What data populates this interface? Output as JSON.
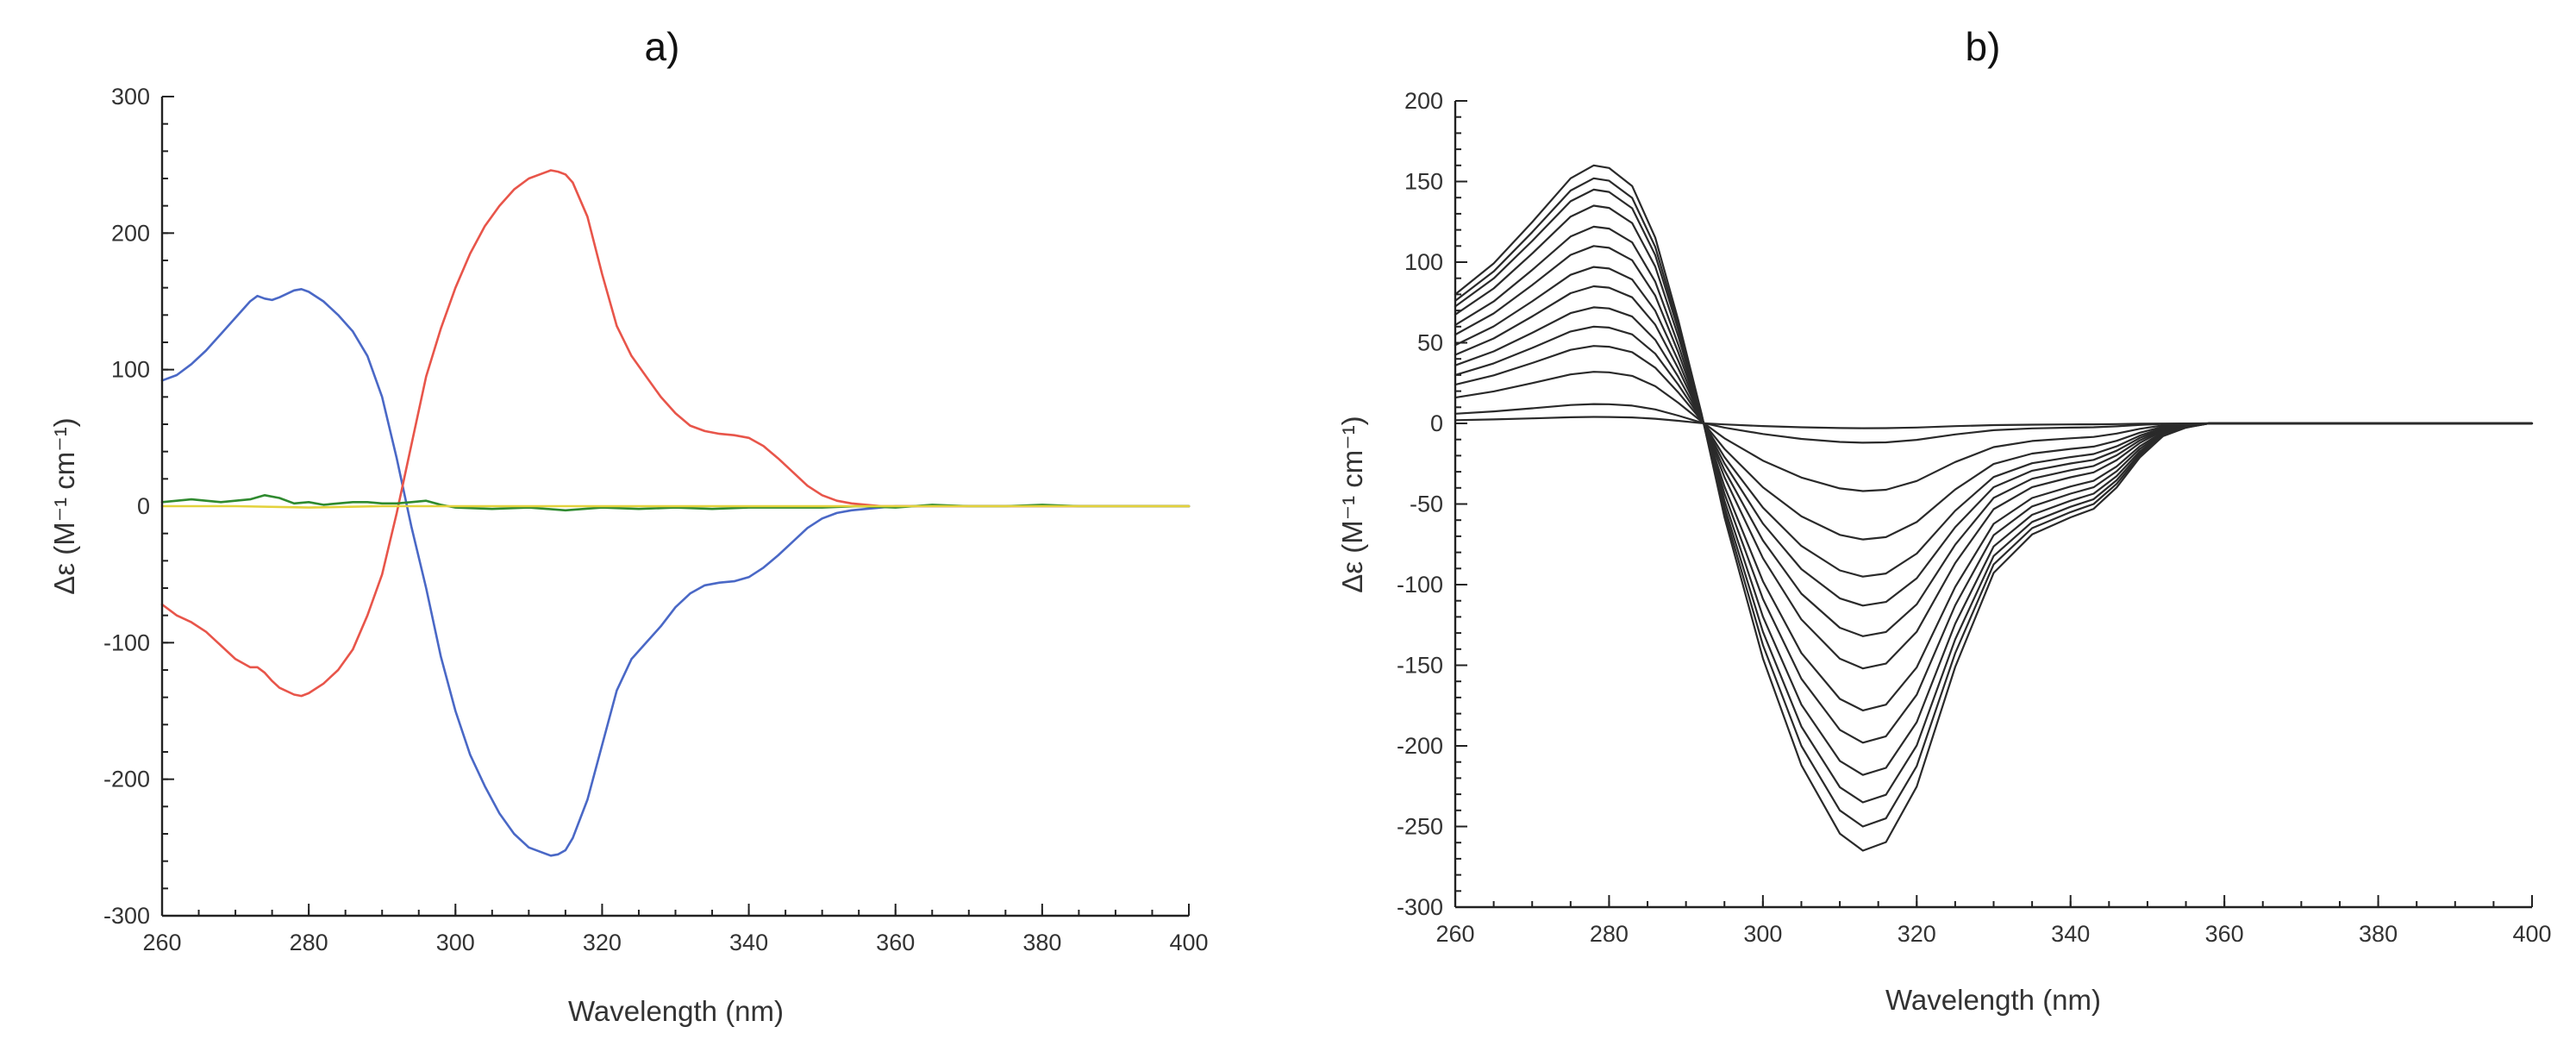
{
  "chart_data": [
    {
      "panel_label": "a)",
      "type": "line",
      "xlabel": "Wavelength (nm)",
      "ylabel": "Δε (M⁻¹ cm⁻¹)",
      "xlim": [
        260,
        400
      ],
      "ylim": [
        -300,
        300
      ],
      "xticks": [
        260,
        280,
        300,
        320,
        340,
        360,
        380,
        400
      ],
      "yticks": [
        -300,
        -200,
        -100,
        0,
        100,
        200,
        300
      ],
      "grid": false,
      "series": [
        {
          "name": "blue trace",
          "color": "#4a68c6",
          "x": [
            260,
            262,
            264,
            266,
            268,
            270,
            272,
            273,
            274,
            275,
            276,
            278,
            279,
            280,
            282,
            284,
            286,
            288,
            290,
            292,
            294,
            296,
            298,
            300,
            302,
            304,
            306,
            308,
            310,
            312,
            313,
            314,
            315,
            316,
            318,
            320,
            322,
            324,
            326,
            328,
            330,
            332,
            334,
            336,
            338,
            340,
            342,
            344,
            346,
            348,
            350,
            352,
            354,
            356,
            358,
            360,
            364,
            370,
            380,
            390,
            400
          ],
          "y": [
            92,
            96,
            104,
            114,
            126,
            138,
            150,
            154,
            152,
            151,
            153,
            158,
            159,
            157,
            150,
            140,
            128,
            110,
            80,
            35,
            -15,
            -60,
            -110,
            -150,
            -182,
            -205,
            -225,
            -240,
            -250,
            -254,
            -256,
            -255,
            -252,
            -243,
            -215,
            -175,
            -135,
            -112,
            -100,
            -88,
            -74,
            -64,
            -58,
            -56,
            -55,
            -52,
            -45,
            -36,
            -26,
            -16,
            -9,
            -5,
            -3,
            -2,
            -1,
            0,
            0,
            0,
            0,
            0,
            0
          ]
        },
        {
          "name": "red trace",
          "color": "#e8554a",
          "x": [
            260,
            262,
            264,
            266,
            268,
            270,
            272,
            273,
            274,
            275,
            276,
            278,
            279,
            280,
            282,
            284,
            286,
            288,
            290,
            292,
            294,
            296,
            298,
            300,
            302,
            304,
            306,
            308,
            310,
            312,
            313,
            314,
            315,
            316,
            318,
            320,
            322,
            324,
            326,
            328,
            330,
            332,
            334,
            336,
            338,
            340,
            342,
            344,
            346,
            348,
            350,
            352,
            354,
            356,
            358,
            360,
            364,
            370,
            380,
            390,
            400
          ],
          "y": [
            -72,
            -80,
            -85,
            -92,
            -102,
            -112,
            -118,
            -118,
            -122,
            -128,
            -133,
            -138,
            -139,
            -137,
            -130,
            -120,
            -105,
            -80,
            -50,
            -5,
            45,
            95,
            130,
            160,
            185,
            205,
            220,
            232,
            240,
            244,
            246,
            245,
            243,
            237,
            212,
            170,
            132,
            110,
            95,
            80,
            68,
            59,
            55,
            53,
            52,
            50,
            44,
            35,
            25,
            15,
            8,
            4,
            2,
            1,
            0,
            0,
            0,
            0,
            0,
            0,
            0
          ]
        },
        {
          "name": "green trace",
          "color": "#2f8a2f",
          "x": [
            260,
            262,
            264,
            266,
            268,
            270,
            272,
            274,
            276,
            278,
            280,
            282,
            284,
            286,
            288,
            290,
            292,
            294,
            296,
            298,
            300,
            305,
            310,
            315,
            320,
            325,
            330,
            335,
            340,
            345,
            350,
            355,
            360,
            365,
            370,
            375,
            380,
            385,
            390,
            395,
            400
          ],
          "y": [
            3,
            4,
            5,
            4,
            3,
            4,
            5,
            8,
            6,
            2,
            3,
            1,
            2,
            3,
            3,
            2,
            2,
            3,
            4,
            1,
            -1,
            -2,
            -1,
            -3,
            -1,
            -2,
            -1,
            -2,
            -1,
            -1,
            -1,
            0,
            -1,
            1,
            0,
            0,
            1,
            0,
            0,
            0,
            0
          ]
        },
        {
          "name": "yellow trace",
          "color": "#e3d23c",
          "x": [
            260,
            270,
            280,
            290,
            300,
            310,
            320,
            330,
            340,
            350,
            360,
            370,
            380,
            390,
            400
          ],
          "y": [
            0,
            0,
            -1,
            0,
            0,
            0,
            0,
            0,
            0,
            0,
            0,
            0,
            0,
            0,
            0
          ]
        }
      ]
    },
    {
      "panel_label": "b)",
      "type": "line",
      "xlabel": "Wavelength (nm)",
      "ylabel": "Δε (M⁻¹ cm⁻¹)",
      "xlim": [
        260,
        400
      ],
      "ylim": [
        -300,
        200
      ],
      "xticks": [
        260,
        280,
        300,
        320,
        340,
        360,
        380,
        400
      ],
      "yticks": [
        -300,
        -250,
        -200,
        -150,
        -100,
        -50,
        0,
        50,
        100,
        150,
        200
      ],
      "grid": false,
      "series_color": "#2a2a2a",
      "x": [
        260,
        265,
        270,
        275,
        278,
        280,
        283,
        286,
        289,
        292,
        295,
        300,
        305,
        310,
        313,
        316,
        320,
        325,
        330,
        335,
        340,
        343,
        346,
        349,
        352,
        355,
        358,
        365,
        370,
        380,
        390,
        400
      ],
      "base_profile": [
        0.5,
        0.62,
        0.78,
        0.95,
        1.0,
        0.99,
        0.92,
        0.72,
        0.4,
        0.04,
        -0.22,
        -0.55,
        -0.8,
        -0.96,
        -1.0,
        -0.98,
        -0.85,
        -0.57,
        -0.35,
        -0.26,
        -0.22,
        -0.2,
        -0.15,
        -0.08,
        -0.03,
        -0.01,
        0.0,
        0.0,
        0.0,
        0.0,
        0.0,
        0.0
      ],
      "series": [
        {
          "name": "trace 1",
          "peak_280": 160,
          "trough_315": -265
        },
        {
          "name": "trace 2",
          "peak_280": 152,
          "trough_315": -250
        },
        {
          "name": "trace 3",
          "peak_280": 145,
          "trough_315": -235
        },
        {
          "name": "trace 4",
          "peak_280": 135,
          "trough_315": -218
        },
        {
          "name": "trace 5",
          "peak_280": 122,
          "trough_315": -198
        },
        {
          "name": "trace 6",
          "peak_280": 110,
          "trough_315": -178
        },
        {
          "name": "trace 7",
          "peak_280": 97,
          "trough_315": -152
        },
        {
          "name": "trace 8",
          "peak_280": 85,
          "trough_315": -132
        },
        {
          "name": "trace 9",
          "peak_280": 72,
          "trough_315": -113
        },
        {
          "name": "trace 10",
          "peak_280": 60,
          "trough_315": -95
        },
        {
          "name": "trace 11",
          "peak_280": 48,
          "trough_315": -72
        },
        {
          "name": "trace 12",
          "peak_280": 32,
          "trough_315": -42
        },
        {
          "name": "trace 13",
          "peak_280": 12,
          "trough_315": -12
        },
        {
          "name": "trace 14",
          "peak_280": 4,
          "trough_315": -3
        }
      ]
    }
  ]
}
